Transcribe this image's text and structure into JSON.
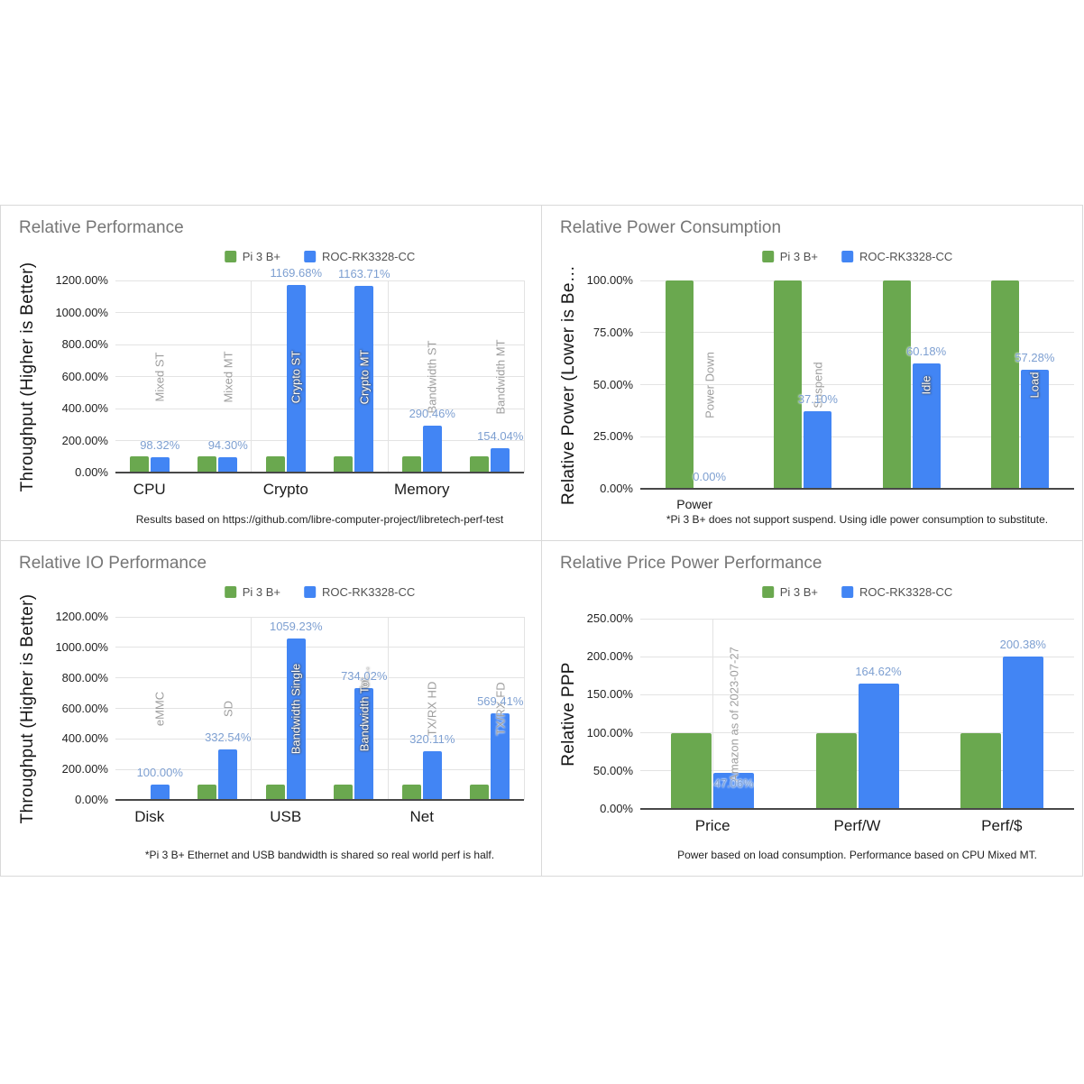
{
  "colors": {
    "pi_green": "#6aa84f",
    "roc_blue": "#4285f4",
    "value_label": "#7d9fd1",
    "annotation_gray": "#9e9e9e",
    "annotation_white": "#ffffff",
    "grid_line": "#e3e3e3",
    "axis_line": "#484848",
    "title_text": "#767676",
    "tick_text": "#222222",
    "category_text": "#1b1b1b",
    "legend_text": "#515151",
    "footnote_text": "#222222",
    "panel_border": "#d9d9d9",
    "background": "#ffffff"
  },
  "legend": {
    "series": [
      {
        "label": "Pi 3 B+",
        "color_key": "pi_green"
      },
      {
        "label": "ROC-RK3328-CC",
        "color_key": "roc_blue"
      }
    ]
  },
  "chart_data": [
    {
      "type": "bar",
      "title": "Relative Performance",
      "ylabel": "Throughput (Higher is Better)",
      "y_ticks": [
        "0.00%",
        "200.00%",
        "400.00%",
        "600.00%",
        "800.00%",
        "1000.00%",
        "1200.00%"
      ],
      "ylim": [
        0,
        1200
      ],
      "series_names": [
        "Pi 3 B+",
        "ROC-RK3328-CC"
      ],
      "groups": [
        {
          "annotation": "Mixed ST",
          "pi": 100,
          "roc": 98.32,
          "roc_label": "98.32%"
        },
        {
          "annotation": "Mixed MT",
          "pi": 100,
          "roc": 94.3,
          "roc_label": "94.30%"
        },
        {
          "annotation": "Crypto ST",
          "pi": 100,
          "roc": 1169.68,
          "roc_label": "1169.68%"
        },
        {
          "annotation": "Crypto MT",
          "pi": 100,
          "roc": 1163.71,
          "roc_label": "1163.71%"
        },
        {
          "annotation": "Bandwidth ST",
          "pi": 100,
          "roc": 290.46,
          "roc_label": "290.46%"
        },
        {
          "annotation": "Bandwidth MT",
          "pi": 100,
          "roc": 154.04,
          "roc_label": "154.04%"
        }
      ],
      "x_labels": [
        {
          "label": "CPU",
          "at_group": 0
        },
        {
          "label": "Crypto",
          "at_group": 2
        },
        {
          "label": "Memory",
          "at_group": 4
        }
      ],
      "footnote": "Results based on https://github.com/libre-computer-project/libretech-perf-test"
    },
    {
      "type": "bar",
      "title": "Relative Power Consumption",
      "ylabel": "Relative Power (Lower is Be…",
      "y_ticks": [
        "0.00%",
        "25.00%",
        "50.00%",
        "75.00%",
        "100.00%"
      ],
      "ylim": [
        0,
        100
      ],
      "series_names": [
        "Pi 3 B+",
        "ROC-RK3328-CC"
      ],
      "groups": [
        {
          "annotation": "Power Down",
          "pi": 100,
          "roc": 0,
          "roc_label": "0.00%"
        },
        {
          "annotation": "Suspend",
          "pi": 100,
          "roc": 37.1,
          "roc_label": "37.10%"
        },
        {
          "annotation": "Idle",
          "pi": 100,
          "roc": 60.18,
          "roc_label": "60.18%"
        },
        {
          "annotation": "Load",
          "pi": 100,
          "roc": 57.28,
          "roc_label": "57.28%"
        }
      ],
      "x_labels": [
        {
          "label": "Power",
          "at_group": 0
        }
      ],
      "footnote": "*Pi 3 B+ does not support suspend. Using idle power consumption to substitute."
    },
    {
      "type": "bar",
      "title": "Relative IO Performance",
      "ylabel": "Throughput (Higher is Better)",
      "y_ticks": [
        "0.00%",
        "200.00%",
        "400.00%",
        "600.00%",
        "800.00%",
        "1000.00%",
        "1200.00%"
      ],
      "ylim": [
        0,
        1200
      ],
      "series_names": [
        "Pi 3 B+",
        "ROC-RK3328-CC"
      ],
      "groups": [
        {
          "annotation": "eMMC",
          "pi": 0,
          "roc": 100.0,
          "roc_label": "100.00%"
        },
        {
          "annotation": "SD",
          "pi": 100,
          "roc": 332.54,
          "roc_label": "332.54%"
        },
        {
          "annotation": "Bandwidth Single",
          "pi": 100,
          "roc": 1059.23,
          "roc_label": "1059.23%"
        },
        {
          "annotation": "Bandwidth Tot…",
          "pi": 100,
          "roc": 734.02,
          "roc_label": "734.02%"
        },
        {
          "annotation": "TX/RX HD",
          "pi": 100,
          "roc": 320.11,
          "roc_label": "320.11%"
        },
        {
          "annotation": "TX/RX FD",
          "pi": 100,
          "roc": 569.41,
          "roc_label": "569.41%"
        }
      ],
      "x_labels": [
        {
          "label": "Disk",
          "at_group": 0
        },
        {
          "label": "USB",
          "at_group": 2
        },
        {
          "label": "Net",
          "at_group": 4
        }
      ],
      "footnote": "*Pi 3 B+ Ethernet and USB bandwidth is shared so real world perf is half."
    },
    {
      "type": "bar",
      "title": "Relative Price Power Performance",
      "ylabel": "Relative PPP",
      "y_ticks": [
        "0.00%",
        "50.00%",
        "100.00%",
        "150.00%",
        "200.00%",
        "250.00%"
      ],
      "ylim": [
        0,
        250
      ],
      "series_names": [
        "Pi 3 B+",
        "ROC-RK3328-CC"
      ],
      "groups": [
        {
          "annotation": "Amazon as of 2023-07-27",
          "pi": 100,
          "roc": 47.06,
          "roc_label": "47.06%",
          "value_inside": true
        },
        {
          "annotation": "",
          "pi": 100,
          "roc": 164.62,
          "roc_label": "164.62%"
        },
        {
          "annotation": "",
          "pi": 100,
          "roc": 200.38,
          "roc_label": "200.38%"
        }
      ],
      "x_labels": [
        {
          "label": "Price",
          "at_group": 0
        },
        {
          "label": "Perf/W",
          "at_group": 1
        },
        {
          "label": "Perf/$",
          "at_group": 2
        }
      ],
      "footnote": "Power based on load consumption. Performance based on CPU Mixed MT."
    }
  ]
}
